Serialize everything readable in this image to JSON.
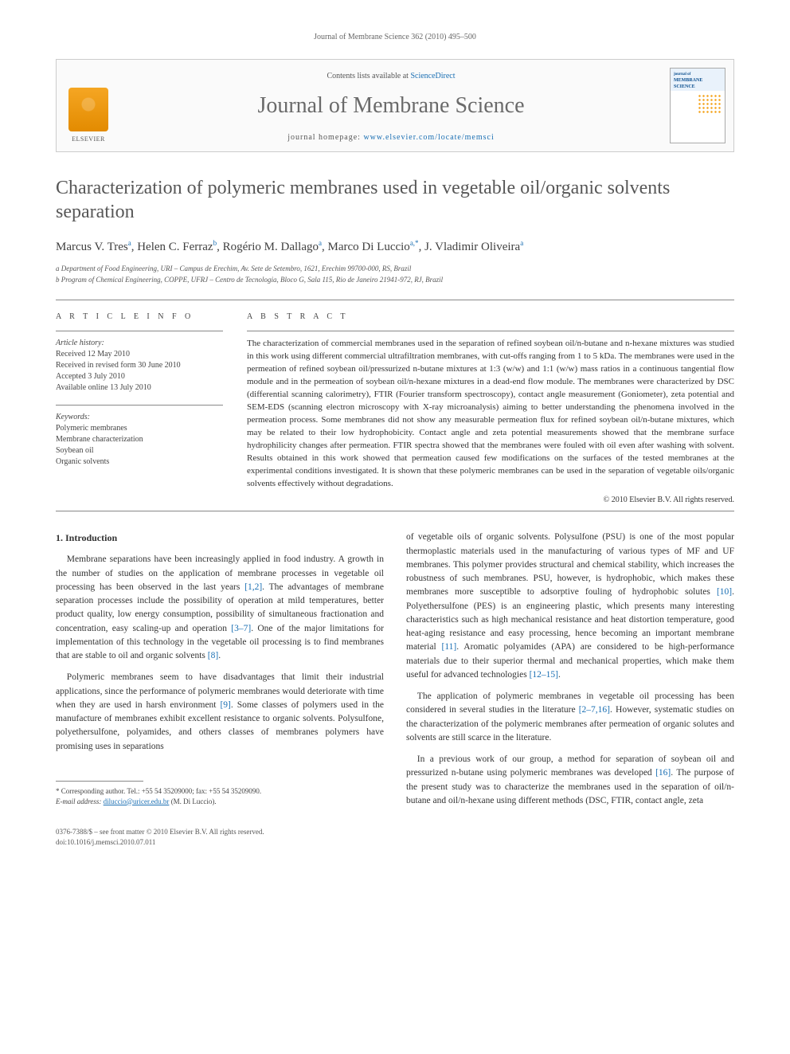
{
  "running_head": "Journal of Membrane Science 362 (2010) 495–500",
  "masthead": {
    "contents_prefix": "Contents lists available at ",
    "contents_link": "ScienceDirect",
    "journal_title": "Journal of Membrane Science",
    "homepage_prefix": "journal homepage: ",
    "homepage_url": "www.elsevier.com/locate/memsci",
    "publisher": "ELSEVIER",
    "cover_label_top": "journal of",
    "cover_label_main": "MEMBRANE SCIENCE"
  },
  "article": {
    "title": "Characterization of polymeric membranes used in vegetable oil/organic solvents separation",
    "authors_html": "Marcus V. Tres<sup>a</sup>, Helen C. Ferraz<sup>b</sup>, Rogério M. Dallago<sup>a</sup>, Marco Di Luccio<sup>a,*</sup>, J. Vladimir Oliveira<sup>a</sup>",
    "affiliations": [
      "a Department of Food Engineering, URI – Campus de Erechim, Av. Sete de Setembro, 1621, Erechim 99700-000, RS, Brazil",
      "b Program of Chemical Engineering, COPPE, UFRJ – Centro de Tecnologia, Bloco G, Sala 115, Rio de Janeiro 21941-972, RJ, Brazil"
    ]
  },
  "article_info": {
    "heading": "A R T I C L E   I N F O",
    "history_label": "Article history:",
    "history": [
      "Received 12 May 2010",
      "Received in revised form 30 June 2010",
      "Accepted 3 July 2010",
      "Available online 13 July 2010"
    ],
    "keywords_label": "Keywords:",
    "keywords": [
      "Polymeric membranes",
      "Membrane characterization",
      "Soybean oil",
      "Organic solvents"
    ]
  },
  "abstract": {
    "heading": "A B S T R A C T",
    "text": "The characterization of commercial membranes used in the separation of refined soybean oil/n-butane and n-hexane mixtures was studied in this work using different commercial ultrafiltration membranes, with cut-offs ranging from 1 to 5 kDa. The membranes were used in the permeation of refined soybean oil/pressurized n-butane mixtures at 1:3 (w/w) and 1:1 (w/w) mass ratios in a continuous tangential flow module and in the permeation of soybean oil/n-hexane mixtures in a dead-end flow module. The membranes were characterized by DSC (differential scanning calorimetry), FTIR (Fourier transform spectroscopy), contact angle measurement (Goniometer), zeta potential and SEM-EDS (scanning electron microscopy with X-ray microanalysis) aiming to better understanding the phenomena involved in the permeation process. Some membranes did not show any measurable permeation flux for refined soybean oil/n-butane mixtures, which may be related to their low hydrophobicity. Contact angle and zeta potential measurements showed that the membrane surface hydrophilicity changes after permeation. FTIR spectra showed that the membranes were fouled with oil even after washing with solvent. Results obtained in this work showed that permeation caused few modifications on the surfaces of the tested membranes at the experimental conditions investigated. It is shown that these polymeric membranes can be used in the separation of vegetable oils/organic solvents effectively without degradations.",
    "copyright": "© 2010 Elsevier B.V. All rights reserved."
  },
  "body": {
    "section_number": "1.",
    "section_title": "Introduction",
    "p1": "Membrane separations have been increasingly applied in food industry. A growth in the number of studies on the application of membrane processes in vegetable oil processing has been observed in the last years [1,2]. The advantages of membrane separation processes include the possibility of operation at mild temperatures, better product quality, low energy consumption, possibility of simultaneous fractionation and concentration, easy scaling-up and operation [3–7]. One of the major limitations for implementation of this technology in the vegetable oil processing is to find membranes that are stable to oil and organic solvents [8].",
    "p2": "Polymeric membranes seem to have disadvantages that limit their industrial applications, since the performance of polymeric membranes would deteriorate with time when they are used in harsh environment [9]. Some classes of polymers used in the manufacture of membranes exhibit excellent resistance to organic solvents. Polysulfone, polyethersulfone, polyamides, and others classes of membranes polymers have promising uses in separations",
    "p3": "of vegetable oils of organic solvents. Polysulfone (PSU) is one of the most popular thermoplastic materials used in the manufacturing of various types of MF and UF membranes. This polymer provides structural and chemical stability, which increases the robustness of such membranes. PSU, however, is hydrophobic, which makes these membranes more susceptible to adsorptive fouling of hydrophobic solutes [10]. Polyethersulfone (PES) is an engineering plastic, which presents many interesting characteristics such as high mechanical resistance and heat distortion temperature, good heat-aging resistance and easy processing, hence becoming an important membrane material [11]. Aromatic polyamides (APA) are considered to be high-performance materials due to their superior thermal and mechanical properties, which make them useful for advanced technologies [12–15].",
    "p4": "The application of polymeric membranes in vegetable oil processing has been considered in several studies in the literature [2–7,16]. However, systematic studies on the characterization of the polymeric membranes after permeation of organic solutes and solvents are still scarce in the literature.",
    "p5": "In a previous work of our group, a method for separation of soybean oil and pressurized n-butane using polymeric membranes was developed [16]. The purpose of the present study was to characterize the membranes used in the separation of oil/n-butane and oil/n-hexane using different methods (DSC, FTIR, contact angle, zeta"
  },
  "footnotes": {
    "corr": "* Corresponding author. Tel.: +55 54 35209000; fax: +55 54 35209090.",
    "email_label": "E-mail address:",
    "email": "diluccio@uricer.edu.br",
    "email_who": "(M. Di Luccio)."
  },
  "footer": {
    "line1": "0376-7388/$ – see front matter © 2010 Elsevier B.V. All rights reserved.",
    "line2": "doi:10.1016/j.memsci.2010.07.011"
  },
  "colors": {
    "link": "#1a6fb3",
    "text": "#333333",
    "muted": "#666666",
    "rule": "#888888",
    "elsevier_orange": "#f5a623"
  }
}
